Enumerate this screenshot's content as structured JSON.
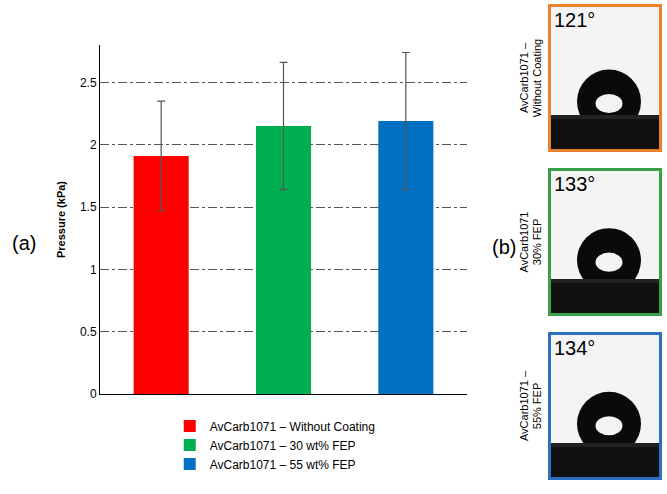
{
  "chart_data": {
    "type": "bar",
    "y_label": "Pressure (kPa)",
    "categories": [
      "AvCarb1071 – Without Coating",
      "AvCarb1071 – 30 wt% FEP",
      "AvCarb1071 – 55 wt% FEP"
    ],
    "values": [
      1.91,
      2.15,
      2.19
    ],
    "errors": [
      0.44,
      0.51,
      0.55
    ],
    "colors": [
      "#ff0000",
      "#00b050",
      "#0070c0"
    ],
    "ylim": [
      0,
      2.8
    ],
    "yticks": [
      0,
      0.5,
      1,
      1.5,
      2,
      2.5
    ],
    "grid": true,
    "legend": "bottom",
    "tick_labels": "y"
  },
  "panel_labels": {
    "a": "(a)",
    "b": "(b)"
  },
  "contact_angle_images": [
    {
      "label": "AvCarb1071 – Without Coating",
      "angle": 121,
      "angle_label": "121°",
      "color": "#e8822f"
    },
    {
      "label": "AvCarb1071 30% FEP",
      "angle": 133,
      "angle_label": "133°",
      "color": "#3aa048"
    },
    {
      "label": "AvCarb1071 – 55% FEP",
      "angle": 134,
      "angle_label": "134°",
      "color": "#2f6fc0"
    }
  ]
}
